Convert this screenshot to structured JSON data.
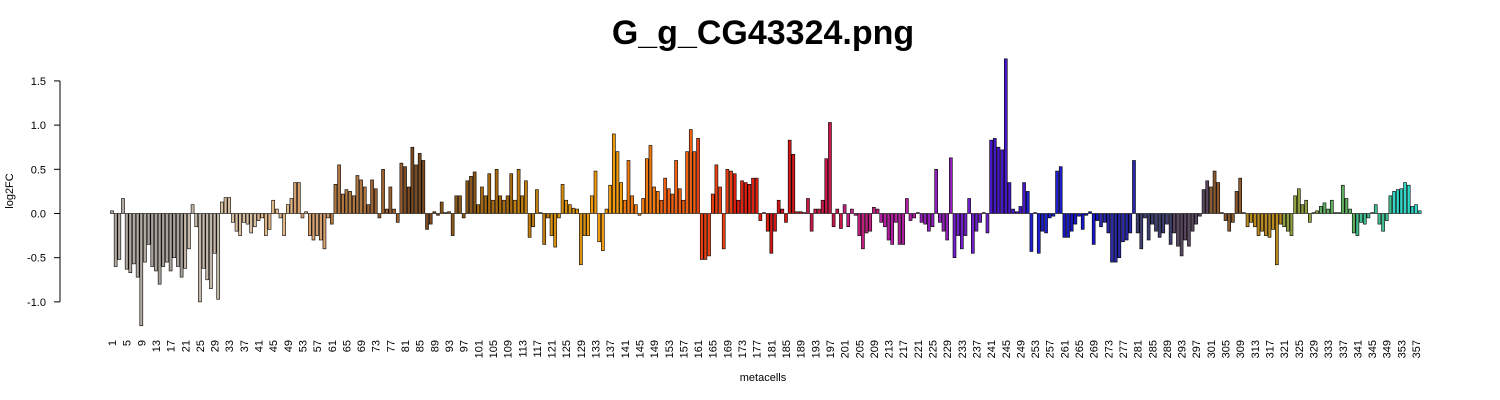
{
  "chart_data": {
    "type": "bar",
    "title": "G_g_CG43324.png",
    "x_label": "metacells",
    "y_label": "log2FC",
    "categories": [
      "1",
      null,
      null,
      null,
      "5",
      null,
      null,
      null,
      "9",
      null,
      null,
      null,
      "13",
      null,
      null,
      null,
      "17",
      null,
      null,
      null,
      "21",
      null,
      null,
      null,
      "25",
      null,
      null,
      null,
      "29",
      null,
      null,
      null,
      "33",
      null,
      null,
      null,
      "37",
      null,
      null,
      null,
      "41",
      null,
      null,
      null,
      "45",
      null,
      null,
      null,
      "49",
      null,
      null,
      null,
      "53",
      null,
      null,
      null,
      "57",
      null,
      null,
      null,
      "61",
      null,
      null,
      null,
      "65",
      null,
      null,
      null,
      "69",
      null,
      null,
      null,
      "73",
      null,
      null,
      null,
      "77",
      null,
      null,
      null,
      "81",
      null,
      null,
      null,
      "85",
      null,
      null,
      null,
      "89",
      null,
      null,
      null,
      "93",
      null,
      null,
      null,
      "97",
      null,
      null,
      null,
      "101",
      null,
      null,
      null,
      "105",
      null,
      null,
      null,
      "109",
      null,
      null,
      null,
      "113",
      null,
      null,
      null,
      "117",
      null,
      null,
      null,
      "121",
      null,
      null,
      null,
      "125",
      null,
      null,
      null,
      "129",
      null,
      null,
      null,
      "133",
      null,
      null,
      null,
      "137",
      null,
      null,
      null,
      "141",
      null,
      null,
      null,
      "145",
      null,
      null,
      null,
      "149",
      null,
      null,
      null,
      "153",
      null,
      null,
      null,
      "157",
      null,
      null,
      null,
      "161",
      null,
      null,
      null,
      "165",
      null,
      null,
      null,
      "169",
      null,
      null,
      null,
      "173",
      null,
      null,
      null,
      "177",
      null,
      null,
      null,
      "181",
      null,
      null,
      null,
      "185",
      null,
      null,
      null,
      "189",
      null,
      null,
      null,
      "193",
      null,
      null,
      null,
      "197",
      null,
      null,
      null,
      "201",
      null,
      null,
      null,
      "205",
      null,
      null,
      null,
      "209",
      null,
      null,
      null,
      "213",
      null,
      null,
      null,
      "217",
      null,
      null,
      null,
      "221",
      null,
      null,
      null,
      "225",
      null,
      null,
      null,
      "229",
      null,
      null,
      null,
      "233",
      null,
      null,
      null,
      "237",
      null,
      null,
      null,
      "241",
      null,
      null,
      null,
      "245",
      null,
      null,
      null,
      "249",
      null,
      null,
      null,
      "253",
      null,
      null,
      null,
      "257",
      null,
      null,
      null,
      "261",
      null,
      null,
      null,
      "265",
      null,
      null,
      null,
      "269",
      null,
      null,
      null,
      "273",
      null,
      null,
      null,
      "277",
      null,
      null,
      null,
      "281",
      null,
      null,
      null,
      "285",
      null,
      null,
      null,
      "289",
      null,
      null,
      null,
      "293",
      null,
      null,
      null,
      "297",
      null,
      null,
      null,
      "301",
      null,
      null,
      null,
      "305",
      null,
      null,
      null,
      "309",
      null,
      null,
      null,
      "313",
      null,
      null,
      null,
      "317",
      null,
      null,
      null,
      "321",
      null,
      null,
      null,
      "325",
      null,
      null,
      null,
      "329",
      null,
      null,
      null,
      "333",
      null,
      null,
      null,
      "337",
      null,
      null,
      null,
      "341",
      null,
      null,
      null,
      "345",
      null,
      null,
      null,
      "349",
      null,
      null,
      null,
      "353",
      null,
      null,
      null,
      "357",
      null
    ],
    "values": [
      0.03,
      -0.6,
      -0.52,
      0.17,
      -0.63,
      -0.67,
      -0.57,
      -0.72,
      -1.27,
      -0.55,
      -0.35,
      -0.6,
      -0.65,
      -0.8,
      -0.6,
      -0.55,
      -0.65,
      -0.5,
      -0.6,
      -0.72,
      -0.62,
      -0.4,
      0.1,
      -0.15,
      -1.0,
      -0.62,
      -0.75,
      -0.85,
      -0.45,
      -0.97,
      0.13,
      0.18,
      0.18,
      -0.1,
      -0.2,
      -0.25,
      -0.1,
      -0.12,
      -0.22,
      -0.15,
      -0.08,
      -0.05,
      -0.25,
      -0.18,
      0.15,
      0.05,
      -0.05,
      -0.25,
      0.1,
      0.17,
      0.35,
      0.35,
      -0.05,
      0.02,
      -0.25,
      -0.3,
      -0.25,
      -0.3,
      -0.4,
      -0.05,
      -0.12,
      0.33,
      0.55,
      0.22,
      0.27,
      0.25,
      0.2,
      0.43,
      0.38,
      0.3,
      0.1,
      0.38,
      0.28,
      -0.05,
      0.5,
      0.05,
      0.3,
      0.05,
      -0.1,
      0.57,
      0.53,
      0.3,
      0.75,
      0.55,
      0.68,
      0.6,
      -0.18,
      -0.12,
      0.02,
      -0.02,
      0.13,
      0.01,
      0.02,
      -0.25,
      0.2,
      0.2,
      -0.05,
      0.37,
      0.42,
      0.47,
      0.1,
      0.3,
      0.2,
      0.45,
      0.15,
      0.5,
      0.2,
      0.15,
      0.2,
      0.45,
      0.15,
      0.5,
      0.2,
      0.37,
      -0.27,
      -0.15,
      0.27,
      0.01,
      -0.35,
      -0.05,
      -0.25,
      -0.38,
      -0.05,
      0.33,
      0.15,
      0.1,
      0.06,
      0.05,
      -0.58,
      -0.25,
      -0.25,
      0.2,
      0.48,
      -0.32,
      -0.42,
      0.05,
      0.32,
      0.9,
      0.7,
      0.35,
      0.15,
      0.6,
      0.2,
      0.1,
      -0.02,
      0.17,
      0.62,
      0.77,
      0.3,
      0.25,
      0.15,
      0.4,
      0.28,
      0.22,
      0.6,
      0.28,
      0.15,
      0.7,
      0.95,
      0.7,
      0.85,
      -0.52,
      -0.52,
      -0.48,
      0.22,
      0.55,
      0.3,
      -0.4,
      0.5,
      0.48,
      0.45,
      0.15,
      0.37,
      0.35,
      0.33,
      0.4,
      0.4,
      -0.08,
      0.01,
      -0.2,
      -0.45,
      -0.2,
      0.15,
      0.05,
      -0.1,
      0.83,
      0.67,
      0.02,
      0.02,
      0.01,
      0.17,
      -0.2,
      0.05,
      0.05,
      0.15,
      0.62,
      1.03,
      -0.15,
      0.05,
      -0.17,
      0.1,
      -0.15,
      0.05,
      -0.02,
      -0.25,
      -0.4,
      -0.22,
      -0.2,
      0.07,
      0.05,
      -0.1,
      -0.15,
      -0.3,
      -0.35,
      -0.1,
      -0.35,
      -0.35,
      0.17,
      -0.08,
      -0.05,
      0.01,
      -0.1,
      -0.12,
      -0.2,
      -0.15,
      0.5,
      -0.1,
      -0.2,
      -0.3,
      0.63,
      -0.5,
      -0.25,
      -0.4,
      -0.25,
      0.17,
      -0.45,
      -0.2,
      -0.1,
      0.01,
      -0.22,
      0.83,
      0.85,
      0.75,
      0.72,
      1.75,
      0.35,
      0.05,
      0.02,
      0.08,
      0.35,
      0.25,
      -0.43,
      0.01,
      -0.45,
      -0.2,
      -0.22,
      -0.05,
      -0.03,
      0.48,
      0.53,
      -0.27,
      -0.27,
      -0.2,
      -0.12,
      -0.03,
      -0.18,
      -0.02,
      0.02,
      -0.35,
      -0.08,
      -0.15,
      -0.1,
      -0.22,
      -0.55,
      -0.55,
      -0.5,
      -0.32,
      -0.3,
      -0.22,
      0.6,
      -0.22,
      -0.4,
      -0.05,
      -0.3,
      -0.12,
      -0.2,
      -0.27,
      -0.22,
      -0.12,
      -0.35,
      -0.22,
      -0.37,
      -0.48,
      -0.3,
      -0.37,
      -0.2,
      -0.12,
      -0.03,
      0.27,
      0.37,
      0.3,
      0.48,
      0.35,
      0.01,
      -0.08,
      -0.2,
      -0.1,
      0.25,
      0.4,
      0.01,
      -0.15,
      -0.1,
      -0.15,
      -0.25,
      -0.2,
      -0.25,
      -0.27,
      -0.18,
      -0.58,
      -0.12,
      -0.15,
      -0.2,
      -0.25,
      0.2,
      0.28,
      0.1,
      0.15,
      -0.1,
      0.01,
      0.03,
      0.08,
      0.12,
      0.05,
      0.15,
      0.01,
      0.01,
      0.32,
      0.17,
      0.05,
      -0.22,
      -0.25,
      -0.1,
      -0.12,
      -0.05,
      0.01,
      0.1,
      -0.12,
      -0.2,
      -0.08,
      0.2,
      0.25,
      0.27,
      0.28,
      0.35,
      0.32,
      0.08,
      0.1,
      0.03
    ],
    "colors": [
      "#b0aaa0",
      "#b0aaa0",
      "#b0aaa0",
      "#b0aaa0",
      "#b0aaa0",
      "#b0aaa0",
      "#b0aaa0",
      "#b0aaa0",
      "#b0aaa0",
      "#b0aaa0",
      "#a8a29a",
      "#a8a29a",
      "#a8a29a",
      "#a8a29a",
      "#a8a29a",
      "#a8a29a",
      "#a8a29a",
      "#a8a29a",
      "#a8a29a",
      "#a8a29a",
      "#c4b8aa",
      "#c4b8aa",
      "#c4b8aa",
      "#c4b8aa",
      "#c4b8aa",
      "#c4b8aa",
      "#c4b8aa",
      "#c4b8aa",
      "#c4b8aa",
      "#c4b8aa",
      "#d9c0a0",
      "#d9c0a0",
      "#d9c0a0",
      "#d9c0a0",
      "#d9c0a0",
      "#d9c0a0",
      "#d9c0a0",
      "#d9c0a0",
      "#d9c0a0",
      "#d9c0a0",
      "#e0b88a",
      "#e0b88a",
      "#e0b88a",
      "#e0b88a",
      "#e0b88a",
      "#e0b88a",
      "#e0b88a",
      "#e0b88a",
      "#e0b88a",
      "#e0b88a",
      "#d4a070",
      "#d4a070",
      "#d4a070",
      "#d4a070",
      "#d4a070",
      "#d4a070",
      "#d4a070",
      "#d4a070",
      "#d4a070",
      "#d4a070",
      "#b07840",
      "#b07840",
      "#b07840",
      "#b07840",
      "#b07840",
      "#b07840",
      "#b07840",
      "#b07840",
      "#b07840",
      "#b07840",
      "#9a6030",
      "#9a6030",
      "#9a6030",
      "#9a6030",
      "#9a6030",
      "#9a6030",
      "#9a6030",
      "#9a6030",
      "#9a6030",
      "#9a6030",
      "#7a4a20",
      "#7a4a20",
      "#7a4a20",
      "#7a4a20",
      "#7a4a20",
      "#7a4a20",
      "#7a4a20",
      "#7a4a20",
      "#7a4a20",
      "#7a4a20",
      "#8a5818",
      "#8a5818",
      "#8a5818",
      "#8a5818",
      "#8a5818",
      "#8a5818",
      "#8a5818",
      "#8a5818",
      "#8a5818",
      "#8a5818",
      "#a86a10",
      "#a86a10",
      "#a86a10",
      "#a86a10",
      "#a86a10",
      "#a86a10",
      "#a86a10",
      "#a86a10",
      "#a86a10",
      "#a86a10",
      "#c07e10",
      "#c07e10",
      "#c07e10",
      "#c07e10",
      "#c07e10",
      "#c07e10",
      "#c07e10",
      "#c07e10",
      "#c07e10",
      "#c07e10",
      "#d89010",
      "#d89010",
      "#d89010",
      "#d89010",
      "#d89010",
      "#d89010",
      "#d89010",
      "#d89010",
      "#d89010",
      "#d89010",
      "#f09a10",
      "#f09a10",
      "#f09a10",
      "#f09a10",
      "#f09a10",
      "#f09a10",
      "#f09a10",
      "#f09a10",
      "#f09a10",
      "#f09a10",
      "#f07a10",
      "#f07a10",
      "#f07a10",
      "#f07a10",
      "#f07a10",
      "#f07a10",
      "#f07a10",
      "#f07a10",
      "#f07a10",
      "#f07a10",
      "#f06010",
      "#f06010",
      "#f06010",
      "#f06010",
      "#f06010",
      "#f06010",
      "#f06010",
      "#f06010",
      "#f06010",
      "#f06010",
      "#e84010",
      "#e84010",
      "#e84010",
      "#e84010",
      "#e84010",
      "#e84010",
      "#e84010",
      "#e84010",
      "#e84010",
      "#e84010",
      "#e02010",
      "#e02010",
      "#e02010",
      "#e02010",
      "#e02010",
      "#e02010",
      "#e02010",
      "#e02010",
      "#e02010",
      "#e02010",
      "#d01818",
      "#d01818",
      "#d01818",
      "#d01818",
      "#d01818",
      "#d01818",
      "#d01818",
      "#d01818",
      "#d01818",
      "#d01818",
      "#c81848",
      "#c81848",
      "#c81848",
      "#c81848",
      "#c81848",
      "#c81848",
      "#c81848",
      "#c81848",
      "#c81848",
      "#c81848",
      "#c02080",
      "#c02080",
      "#c02080",
      "#c02080",
      "#c02080",
      "#c02080",
      "#c02080",
      "#c02080",
      "#c02080",
      "#c02080",
      "#b020a0",
      "#b020a0",
      "#b020a0",
      "#b020a0",
      "#b020a0",
      "#b020a0",
      "#b020a0",
      "#b020a0",
      "#b020a0",
      "#b020a0",
      "#9020b8",
      "#9020b8",
      "#9020b8",
      "#9020b8",
      "#9020b8",
      "#9020b8",
      "#9020b8",
      "#9020b8",
      "#9020b8",
      "#9020b8",
      "#7020c8",
      "#7020c8",
      "#7020c8",
      "#7020c8",
      "#7020c8",
      "#7020c8",
      "#7020c8",
      "#7020c8",
      "#7020c8",
      "#7020c8",
      "#4818c8",
      "#4818c8",
      "#4818c8",
      "#4818c8",
      "#4818c8",
      "#4818c8",
      "#4818c8",
      "#4818c8",
      "#4818c8",
      "#4818c8",
      "#2020d0",
      "#2020d0",
      "#2020d0",
      "#2020d0",
      "#2020d0",
      "#2020d0",
      "#2020d0",
      "#2020d0",
      "#2020d0",
      "#2020d0",
      "#1818c8",
      "#1818c8",
      "#1818c8",
      "#1818c8",
      "#1818c8",
      "#1818c8",
      "#1818c8",
      "#1818c8",
      "#1818c8",
      "#1818c8",
      "#2828a8",
      "#2828a8",
      "#2828a8",
      "#2828a8",
      "#2828a8",
      "#2828a8",
      "#2828a8",
      "#2828a8",
      "#2828a8",
      "#2828a8",
      "#404070",
      "#404070",
      "#404070",
      "#404070",
      "#404070",
      "#404070",
      "#404070",
      "#404070",
      "#404070",
      "#404070",
      "#5a4860",
      "#5a4860",
      "#5a4860",
      "#5a4860",
      "#5a4860",
      "#5a4860",
      "#5a4860",
      "#5a4860",
      "#5a4860",
      "#5a4860",
      "#8a5a30",
      "#8a5a30",
      "#8a5a30",
      "#8a5a30",
      "#8a5a30",
      "#8a5a30",
      "#8a5a30",
      "#8a5a30",
      "#8a5a30",
      "#8a5a30",
      "#b88a20",
      "#b88a20",
      "#b88a20",
      "#b88a20",
      "#b88a20",
      "#b88a20",
      "#b88a20",
      "#b88a20",
      "#b88a20",
      "#b88a20",
      "#90a040",
      "#90a040",
      "#90a040",
      "#90a040",
      "#90a040",
      "#90a040",
      "#90a040",
      "#90a040",
      "#90a040",
      "#90a040",
      "#60b060",
      "#60b060",
      "#60b060",
      "#60b060",
      "#60b060",
      "#60b060",
      "#60b060",
      "#60b060",
      "#60b060",
      "#60b060",
      "#40c090",
      "#40c090",
      "#40c090",
      "#40c090",
      "#40c090",
      "#40c090",
      "#40c090",
      "#40c090",
      "#40c090",
      "#40c090",
      "#30d8c8",
      "#30d8c8",
      "#30d8c8",
      "#30d8c8",
      "#30d8c8",
      "#30d8c8",
      "#30d8c8",
      "#30d8c8"
    ],
    "ylim": [
      -1.3,
      1.8
    ],
    "yticks": [
      {
        "value": -1,
        "label": "-1.0"
      },
      {
        "value": -0.5,
        "label": "-0.5"
      },
      {
        "value": 0,
        "label": "0.0"
      },
      0.5,
      {
        "value": 1,
        "label": "1.0"
      },
      1.5
    ]
  }
}
